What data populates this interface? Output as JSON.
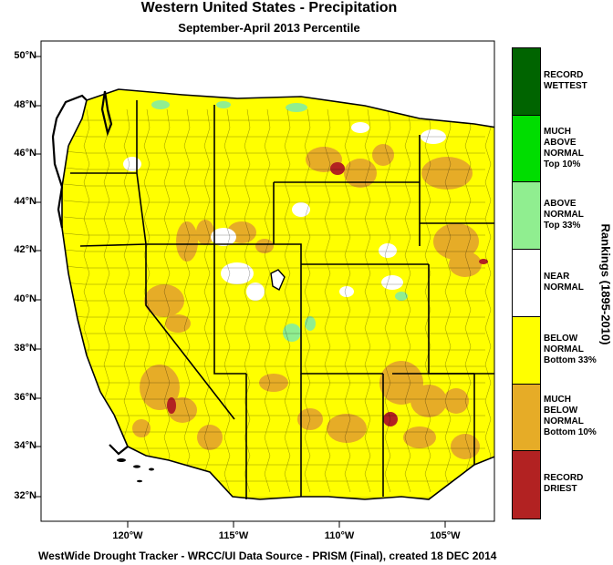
{
  "title": "Western United States - Precipitation",
  "subtitle": "September-April 2013 Percentile",
  "footer": "WestWide Drought Tracker - WRCC/UI  Data Source - PRISM (Final), created 18 DEC 2014",
  "axes": {
    "lat_labels": [
      "50°N",
      "48°N",
      "46°N",
      "44°N",
      "42°N",
      "40°N",
      "38°N",
      "36°N",
      "34°N",
      "32°N"
    ],
    "lon_labels": [
      "120°W",
      "115°W",
      "110°W",
      "105°W"
    ]
  },
  "legend": {
    "title": "Rankings (1895-2010)",
    "categories": [
      {
        "lines": [
          "RECORD",
          "WETTEST"
        ],
        "color": "#006400"
      },
      {
        "lines": [
          "MUCH",
          "ABOVE",
          "NORMAL",
          "Top 10%"
        ],
        "color": "#00dd00"
      },
      {
        "lines": [
          "ABOVE",
          "NORMAL",
          "Top 33%"
        ],
        "color": "#90ee90"
      },
      {
        "lines": [
          "NEAR",
          "NORMAL"
        ],
        "color": "#ffffff"
      },
      {
        "lines": [
          "BELOW",
          "NORMAL",
          "Bottom 33%"
        ],
        "color": "#ffff00"
      },
      {
        "lines": [
          "MUCH",
          "BELOW",
          "NORMAL",
          "Bottom 10%"
        ],
        "color": "#e6ac27"
      },
      {
        "lines": [
          "RECORD",
          "DRIEST"
        ],
        "color": "#b22222"
      }
    ]
  },
  "colors": {
    "ocean": "#ffffff",
    "canada": "#ffffff",
    "mexico": "#ffffff",
    "below_normal": "#ffff00",
    "much_below": "#e6ac27",
    "record_driest": "#b22222",
    "above_normal": "#90ee90",
    "near_normal": "#ffffff"
  }
}
